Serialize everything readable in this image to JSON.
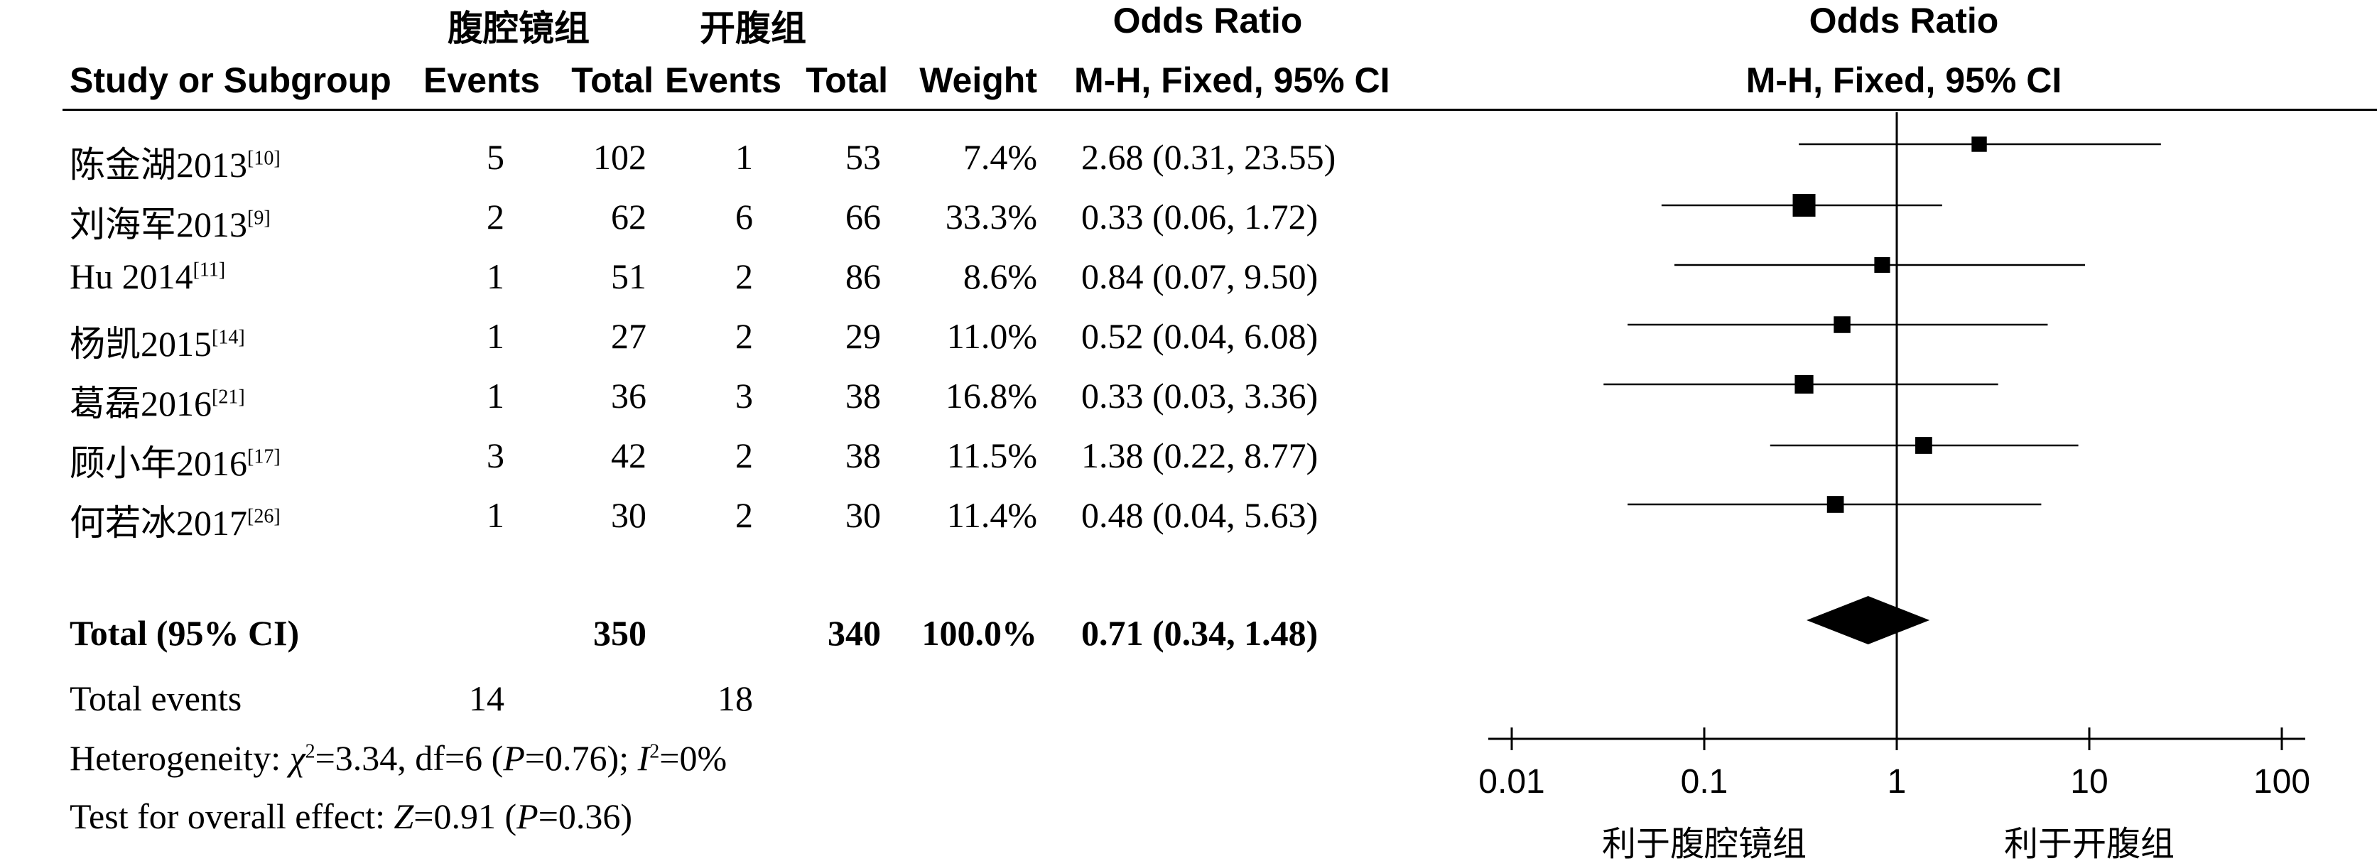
{
  "header": {
    "group_lap": "腹腔镜组",
    "group_open": "开腹组",
    "or_title": "Odds Ratio",
    "study_col": "Study or Subgroup",
    "events": "Events",
    "total": "Total",
    "weight": "Weight",
    "or_method": "M-H, Fixed, 95% CI",
    "plot_title": "Odds Ratio",
    "plot_method": "M-H, Fixed, 95% CI"
  },
  "studies": [
    {
      "name": "陈金湖2013",
      "ref": "[10]",
      "lap_events": "5",
      "lap_total": "102",
      "open_events": "1",
      "open_total": "53",
      "weight": "7.4%",
      "or_text": "2.68 (0.31, 23.55)"
    },
    {
      "name": "刘海军2013",
      "ref": "[9]",
      "lap_events": "2",
      "lap_total": "62",
      "open_events": "6",
      "open_total": "66",
      "weight": "33.3%",
      "or_text": "0.33 (0.06, 1.72)"
    },
    {
      "name": "Hu 2014",
      "ref": "[11]",
      "lap_events": "1",
      "lap_total": "51",
      "open_events": "2",
      "open_total": "86",
      "weight": "8.6%",
      "or_text": "0.84 (0.07, 9.50)"
    },
    {
      "name": "杨凯2015",
      "ref": "[14]",
      "lap_events": "1",
      "lap_total": "27",
      "open_events": "2",
      "open_total": "29",
      "weight": "11.0%",
      "or_text": "0.52 (0.04, 6.08)"
    },
    {
      "name": "葛磊2016",
      "ref": "[21]",
      "lap_events": "1",
      "lap_total": "36",
      "open_events": "3",
      "open_total": "38",
      "weight": "16.8%",
      "or_text": "0.33 (0.03, 3.36)"
    },
    {
      "name": "顾小年2016",
      "ref": "[17]",
      "lap_events": "3",
      "lap_total": "42",
      "open_events": "2",
      "open_total": "38",
      "weight": "11.5%",
      "or_text": "1.38 (0.22, 8.77)"
    },
    {
      "name": "何若冰2017",
      "ref": "[26]",
      "lap_events": "1",
      "lap_total": "30",
      "open_events": "2",
      "open_total": "30",
      "weight": "11.4%",
      "or_text": "0.48 (0.04, 5.63)"
    }
  ],
  "total": {
    "label": "Total (95% CI)",
    "lap_total": "350",
    "open_total": "340",
    "weight": "100.0%",
    "or_text": "0.71 (0.34, 1.48)"
  },
  "total_events": {
    "label": "Total events",
    "lap": "14",
    "open": "18"
  },
  "heterogeneity": {
    "prefix": "Heterogeneity: ",
    "chi_symbol": "χ",
    "chi_exp": "2",
    "chi_value": "=3.34, df=6 (",
    "p_symbol": "P",
    "p_value": "=0.76); ",
    "i_symbol": "I",
    "i_exp": "2",
    "i_value": "=0%"
  },
  "overall_effect": {
    "prefix": "Test for overall effect: ",
    "z_symbol": "Z",
    "z_value": "=0.91 (",
    "p_symbol": "P",
    "p_value": "=0.36)"
  },
  "chart_data": {
    "type": "forest",
    "scale": "log",
    "title": "Odds Ratio",
    "subtitle": "M-H, Fixed, 95% CI",
    "xlim": [
      0.01,
      100
    ],
    "ticks": [
      0.01,
      0.1,
      1,
      10,
      100
    ],
    "tick_labels": [
      "0.01",
      "0.1",
      "1",
      "10",
      "100"
    ],
    "reference_line": 1,
    "favours_left": "利于腹腔镜组",
    "favours_right": "利于开腹组",
    "studies": [
      {
        "name": "陈金湖2013",
        "or": 2.68,
        "lower": 0.31,
        "upper": 23.55,
        "weight": 7.4
      },
      {
        "name": "刘海军2013",
        "or": 0.33,
        "lower": 0.06,
        "upper": 1.72,
        "weight": 33.3
      },
      {
        "name": "Hu 2014",
        "or": 0.84,
        "lower": 0.07,
        "upper": 9.5,
        "weight": 8.6
      },
      {
        "name": "杨凯2015",
        "or": 0.52,
        "lower": 0.04,
        "upper": 6.08,
        "weight": 11.0
      },
      {
        "name": "葛磊2016",
        "or": 0.33,
        "lower": 0.03,
        "upper": 3.36,
        "weight": 16.8
      },
      {
        "name": "顾小年2016",
        "or": 1.38,
        "lower": 0.22,
        "upper": 8.77,
        "weight": 11.5
      },
      {
        "name": "何若冰2017",
        "or": 0.48,
        "lower": 0.04,
        "upper": 5.63,
        "weight": 11.4
      }
    ],
    "pooled": {
      "or": 0.71,
      "lower": 0.34,
      "upper": 1.48
    }
  }
}
